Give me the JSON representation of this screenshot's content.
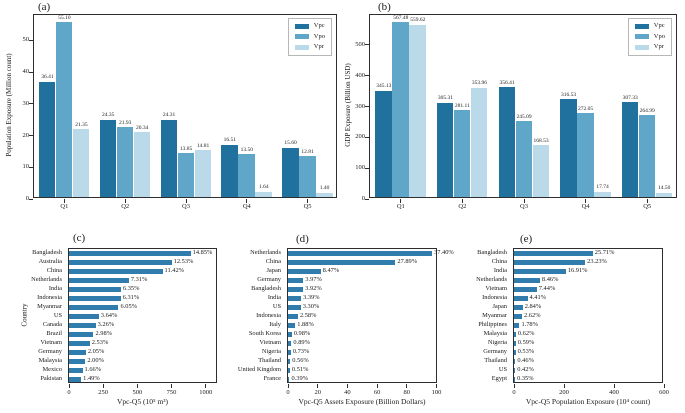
{
  "colors": {
    "vpc": "#21719f",
    "vpo": "#60a6c8",
    "vpr": "#bad9e9",
    "hbar": "#2f7cad",
    "spine": "#2e2e2e"
  },
  "chart_data": [
    {
      "id": "a",
      "type": "bar",
      "panel_label": "(a)",
      "ylabel": "Population Exposure (Million count)",
      "categories": [
        "Q1",
        "Q2",
        "Q3",
        "Q4",
        "Q5"
      ],
      "series": [
        {
          "name": "Vpc",
          "color": "#21719f",
          "values": [
            36.41,
            24.35,
            24.31,
            16.51,
            15.6
          ]
        },
        {
          "name": "Vpo",
          "color": "#60a6c8",
          "values": [
            55.1,
            21.93,
            13.85,
            13.5,
            12.81
          ]
        },
        {
          "name": "Vpr",
          "color": "#bad9e9",
          "values": [
            21.35,
            20.34,
            14.81,
            1.64,
            1.4
          ]
        }
      ],
      "value_label_format": "2dp",
      "yticks": [
        0,
        10,
        20,
        30,
        40,
        50
      ],
      "ylim": [
        0,
        58
      ],
      "legend": true,
      "legend_position": "upper right",
      "grid": false
    },
    {
      "id": "b",
      "type": "bar",
      "panel_label": "(b)",
      "ylabel": "GDP Exposure (Billion USD)",
      "categories": [
        "Q1",
        "Q2",
        "Q3",
        "Q4",
        "Q5"
      ],
      "series": [
        {
          "name": "Vpc",
          "color": "#21719f",
          "values": [
            345.13,
            305.31,
            356.41,
            316.53,
            307.33
          ]
        },
        {
          "name": "Vpo",
          "color": "#60a6c8",
          "values": [
            567.48,
            281.11,
            245.09,
            272.05,
            264.99
          ]
        },
        {
          "name": "Vpr",
          "color": "#bad9e9",
          "values": [
            559.62,
            353.96,
            168.53,
            17.74,
            14.5
          ]
        }
      ],
      "value_label_format": "2dp",
      "yticks": [
        0,
        100,
        200,
        300,
        400,
        500
      ],
      "ylim": [
        0,
        597
      ],
      "legend": true,
      "legend_position": "upper right",
      "grid": false
    },
    {
      "id": "c",
      "type": "barh",
      "panel_label": "(c)",
      "ylabel": "Country",
      "xlabel": "Vpc-Q5 (10⁵ m³)",
      "categories": [
        "Bangladesh",
        "Australia",
        "China",
        "Netherlands",
        "India",
        "Indonesia",
        "Myanmar",
        "US",
        "Canada",
        "Brazil",
        "Vietnam",
        "Germany",
        "Malaysia",
        "Mexico",
        "Pakistan"
      ],
      "values": [
        890,
        751,
        684,
        438,
        380,
        378,
        362,
        218,
        195,
        179,
        152,
        123,
        120,
        99,
        89
      ],
      "value_labels": [
        "14.85%",
        "12.53%",
        "11.42%",
        "7.31%",
        "6.35%",
        "6.31%",
        "6.05%",
        "3.64%",
        "3.26%",
        "2.98%",
        "2.53%",
        "2.05%",
        "2.00%",
        "1.66%",
        "1.49%"
      ],
      "bar_color": "#2f7cad",
      "xticks": [
        0,
        250,
        500,
        750,
        1000
      ],
      "xlim": [
        0,
        1090
      ],
      "grid": false
    },
    {
      "id": "d",
      "type": "barh",
      "panel_label": "(d)",
      "xlabel": "Vpc-Q5 Assets Exposure (Billion Dollars)",
      "categories": [
        "Netherlands",
        "China",
        "Japan",
        "Germany",
        "Bangladesh",
        "India",
        "US",
        "Indonesia",
        "Italy",
        "South Korea",
        "Vietnam",
        "Nigeria",
        "Thailand",
        "United Kingdom",
        "France"
      ],
      "values": [
        97,
        72.3,
        22,
        10.3,
        10.2,
        8.8,
        8.6,
        6.7,
        4.9,
        2.5,
        2.3,
        1.9,
        1.5,
        1.3,
        1.0
      ],
      "value_labels": [
        "37.40%",
        "27.89%",
        "8.47%",
        "3.97%",
        "3.92%",
        "3.39%",
        "3.30%",
        "2.58%",
        "1.88%",
        "0.98%",
        "0.89%",
        "0.73%",
        "0.56%",
        "0.51%",
        "0.39%"
      ],
      "bar_color": "#2f7cad",
      "xticks": [
        0,
        20,
        40,
        60,
        80,
        100
      ],
      "xlim": [
        0,
        101
      ],
      "grid": false
    },
    {
      "id": "e",
      "type": "barh",
      "panel_label": "(e)",
      "xlabel": "Vpc-Q5 Population Exposure (10⁴ count)",
      "categories": [
        "Bangladesh",
        "China",
        "India",
        "Netherlands",
        "Vietnam",
        "Indonesia",
        "Japan",
        "Myanmar",
        "Philippines",
        "Malaysia",
        "Nigeria",
        "Germany",
        "Thailand",
        "US",
        "Egypt"
      ],
      "values": [
        315,
        284.6,
        207.2,
        103.7,
        91.1,
        54,
        34.8,
        32.1,
        21.8,
        7.6,
        7.2,
        6.5,
        5.6,
        5.1,
        4.3
      ],
      "value_labels": [
        "25.71%",
        "23.23%",
        "16.91%",
        "8.46%",
        "7.44%",
        "4.41%",
        "2.84%",
        "2.62%",
        "1.78%",
        "0.62%",
        "0.59%",
        "0.53%",
        "0.46%",
        "0.42%",
        "0.35%"
      ],
      "bar_color": "#2f7cad",
      "xticks": [
        0,
        200,
        400,
        600
      ],
      "xlim": [
        0,
        600
      ],
      "grid": false
    }
  ]
}
